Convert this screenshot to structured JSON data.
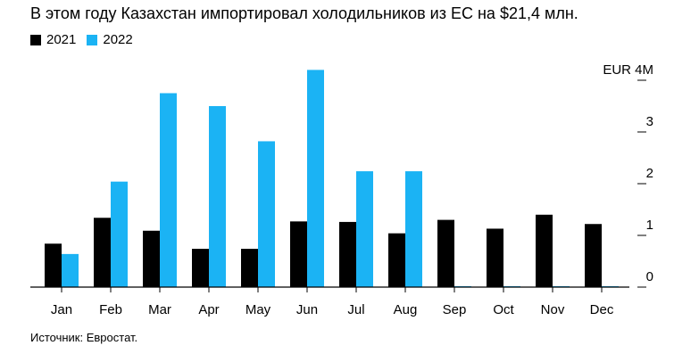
{
  "title": "В этом году Казахстан импортировал холодильников из ЕС на $21,4 млн.",
  "source": "Источник: Евростат.",
  "chart_data": {
    "type": "bar",
    "categories": [
      "Jan",
      "Feb",
      "Mar",
      "Apr",
      "May",
      "Jun",
      "Jul",
      "Aug",
      "Sep",
      "Oct",
      "Nov",
      "Dec"
    ],
    "series": [
      {
        "name": "2021",
        "color": "#000000",
        "values": [
          0.84,
          1.34,
          1.09,
          0.74,
          0.74,
          1.27,
          1.26,
          1.04,
          1.3,
          1.13,
          1.4,
          1.22
        ]
      },
      {
        "name": "2022",
        "color": "#1bb3f4",
        "values": [
          0.64,
          2.04,
          3.75,
          3.5,
          2.82,
          4.2,
          2.24,
          2.24,
          0,
          0,
          0,
          0
        ]
      }
    ],
    "y_unit_label": "EUR 4M",
    "y_ticks": [
      {
        "value": 0,
        "label": "0"
      },
      {
        "value": 1,
        "label": "1"
      },
      {
        "value": 2,
        "label": "2"
      },
      {
        "value": 3,
        "label": "3"
      },
      {
        "value": 4,
        "label": "EUR 4M"
      }
    ],
    "ylim": [
      0,
      4.3
    ],
    "axis_position": "right",
    "legend_position": "top-left",
    "grid": false
  }
}
